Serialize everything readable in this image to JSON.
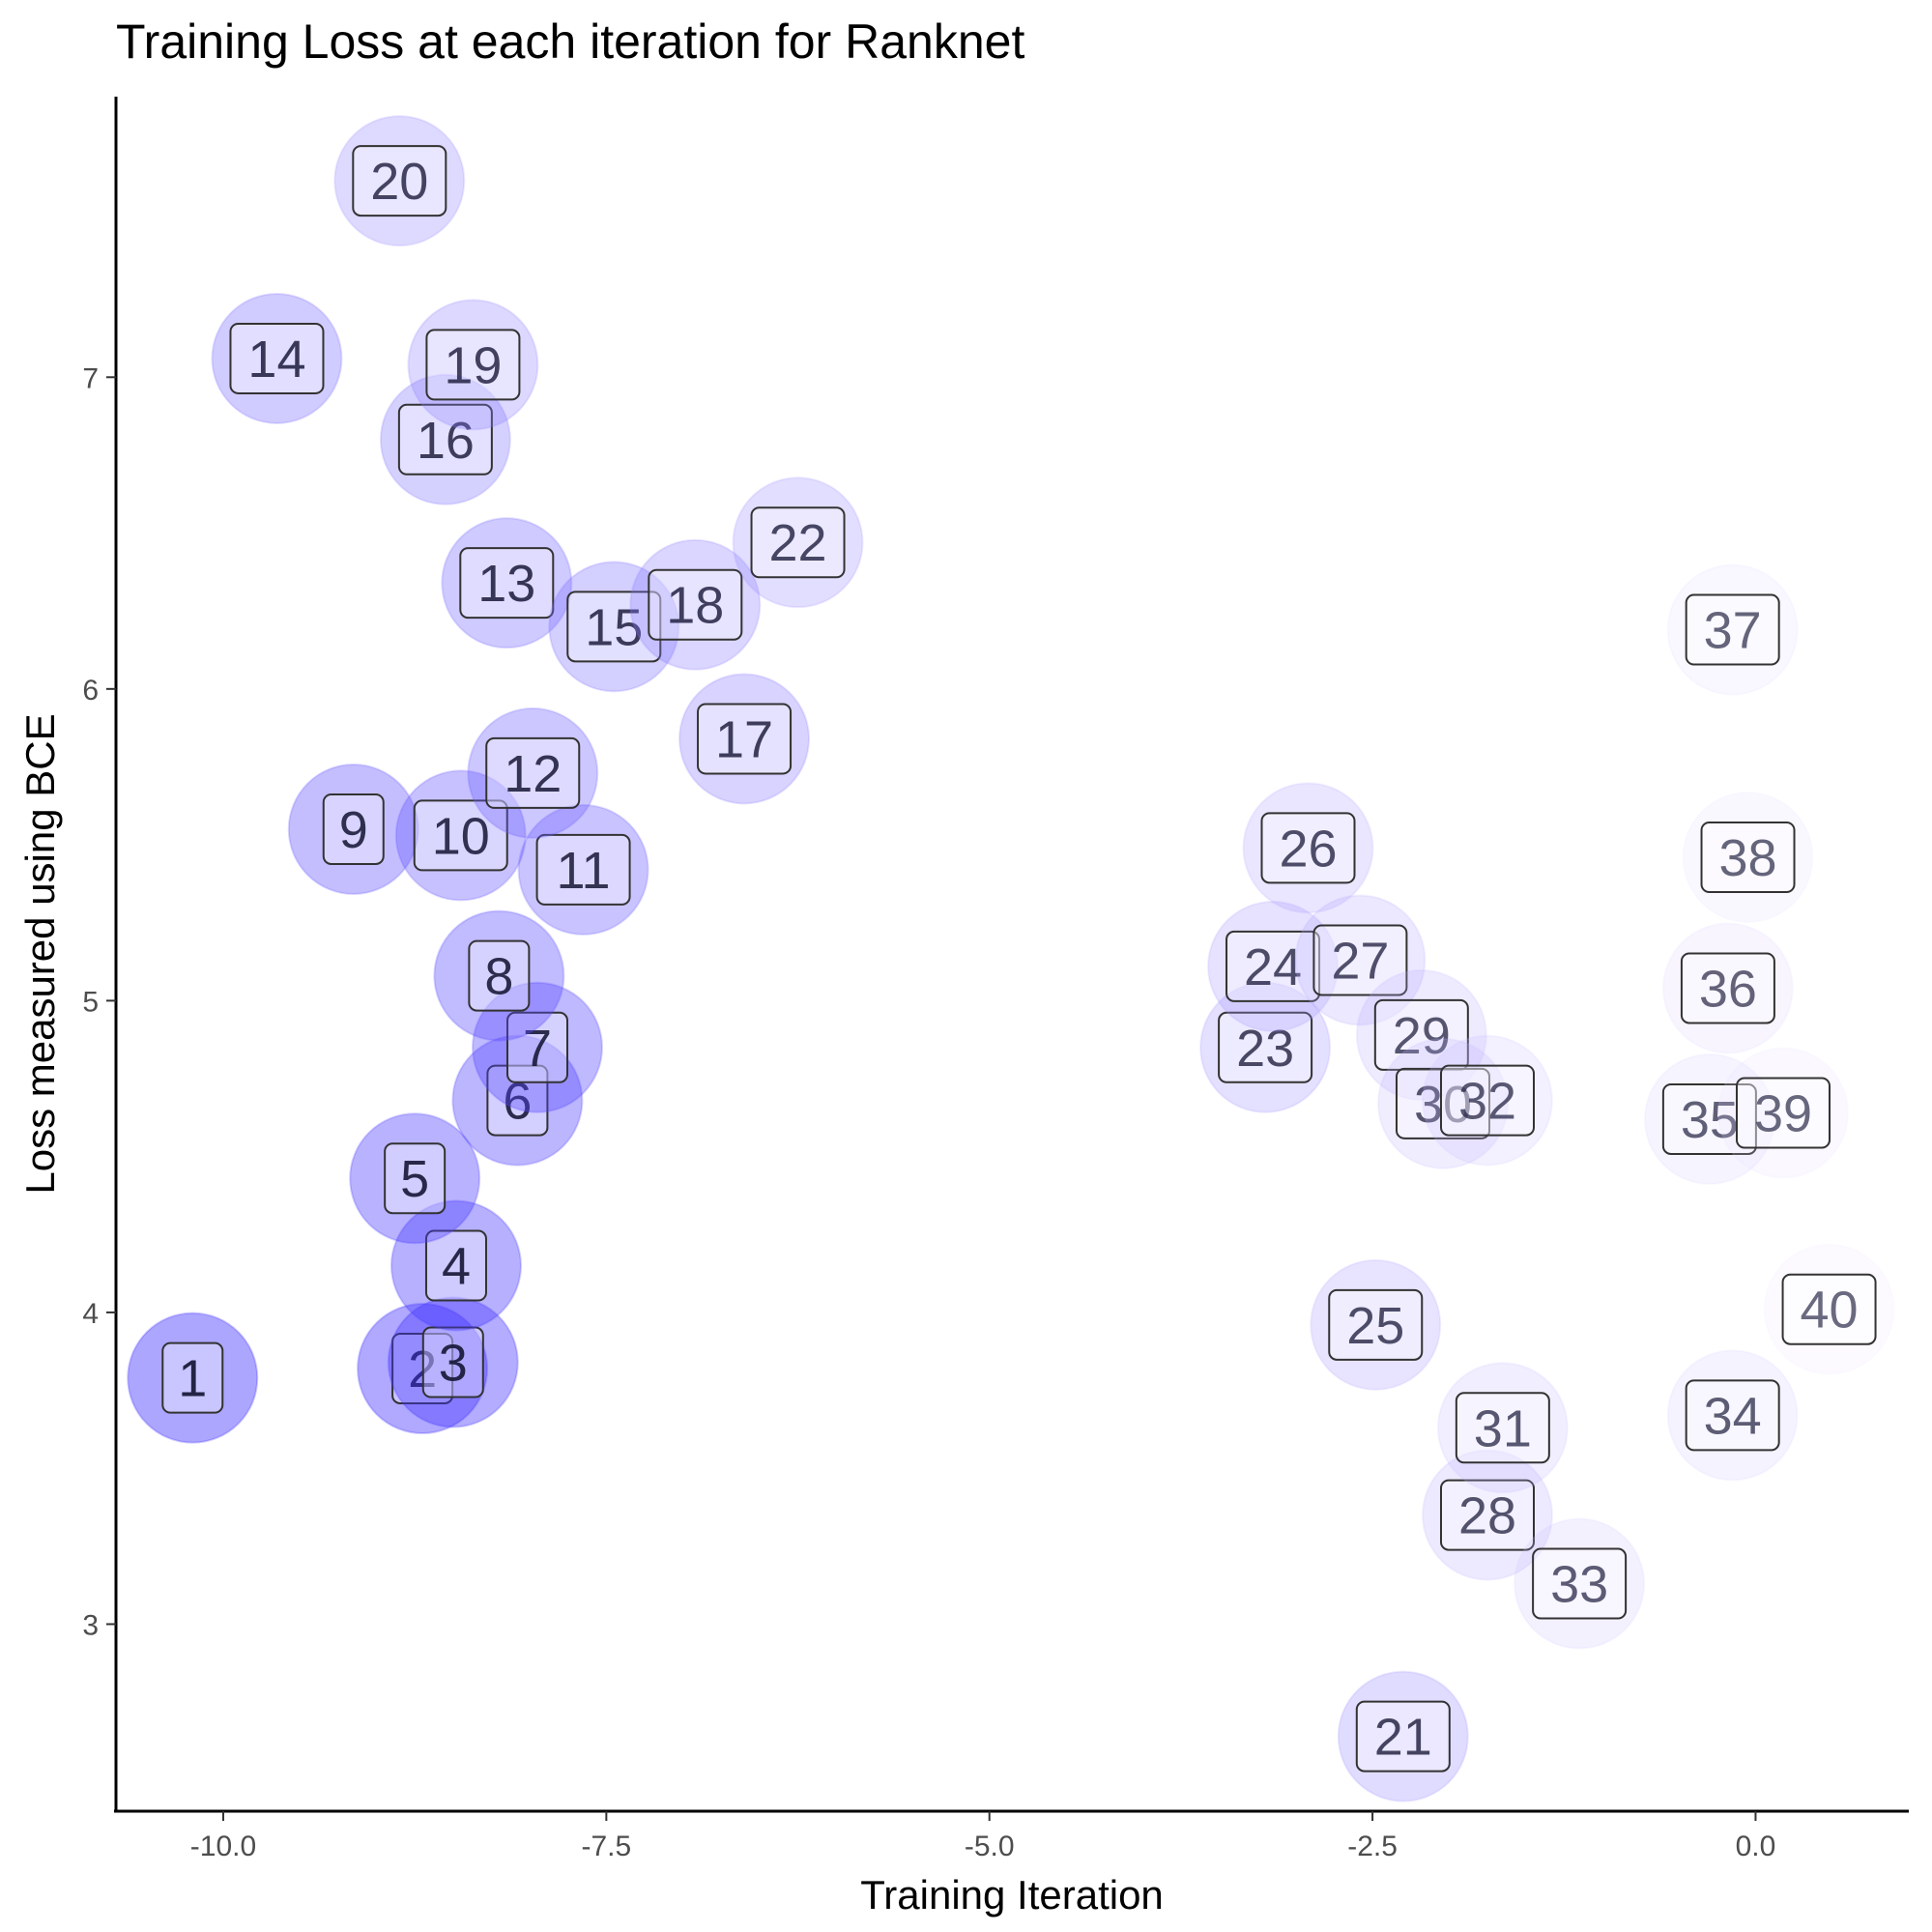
{
  "chart_data": {
    "type": "scatter",
    "title": "Training Loss at each iteration for Ranknet",
    "xlabel": "Training Iteration",
    "ylabel": "Loss measured using BCE",
    "xlim": [
      -10.7,
      1.0
    ],
    "ylim": [
      2.4,
      7.9
    ],
    "x_ticks": [
      -10.0,
      -7.5,
      -5.0,
      -2.5,
      0.0
    ],
    "x_tick_labels": [
      "-10.0",
      "-7.5",
      "-5.0",
      "-2.5",
      "0.0"
    ],
    "y_ticks": [
      3,
      4,
      5,
      6,
      7
    ],
    "y_tick_labels": [
      "3",
      "4",
      "5",
      "6",
      "7"
    ],
    "grid": false,
    "legend": "none",
    "colors": {
      "point_start": "#3b2bff",
      "point_end": "#ebe0ff",
      "label_stroke": "#333333"
    },
    "points": [
      {
        "label": "1",
        "x": -10.2,
        "y": 3.79
      },
      {
        "label": "2",
        "x": -8.7,
        "y": 3.82
      },
      {
        "label": "3",
        "x": -8.5,
        "y": 3.84
      },
      {
        "label": "4",
        "x": -8.48,
        "y": 4.15
      },
      {
        "label": "5",
        "x": -8.75,
        "y": 4.43
      },
      {
        "label": "6",
        "x": -8.08,
        "y": 4.68
      },
      {
        "label": "7",
        "x": -7.95,
        "y": 4.85
      },
      {
        "label": "8",
        "x": -8.2,
        "y": 5.08
      },
      {
        "label": "9",
        "x": -9.15,
        "y": 5.55
      },
      {
        "label": "10",
        "x": -8.45,
        "y": 5.53
      },
      {
        "label": "11",
        "x": -7.65,
        "y": 5.42
      },
      {
        "label": "12",
        "x": -7.98,
        "y": 5.73
      },
      {
        "label": "13",
        "x": -8.15,
        "y": 6.34
      },
      {
        "label": "14",
        "x": -9.65,
        "y": 7.06
      },
      {
        "label": "15",
        "x": -7.45,
        "y": 6.2
      },
      {
        "label": "16",
        "x": -8.55,
        "y": 6.8
      },
      {
        "label": "17",
        "x": -6.6,
        "y": 5.84
      },
      {
        "label": "18",
        "x": -6.92,
        "y": 6.27
      },
      {
        "label": "19",
        "x": -8.37,
        "y": 7.04
      },
      {
        "label": "20",
        "x": -8.85,
        "y": 7.63
      },
      {
        "label": "21",
        "x": -2.3,
        "y": 2.64
      },
      {
        "label": "22",
        "x": -6.25,
        "y": 6.47
      },
      {
        "label": "23",
        "x": -3.2,
        "y": 4.85
      },
      {
        "label": "24",
        "x": -3.15,
        "y": 5.11
      },
      {
        "label": "25",
        "x": -2.48,
        "y": 3.96
      },
      {
        "label": "26",
        "x": -2.92,
        "y": 5.49
      },
      {
        "label": "27",
        "x": -2.58,
        "y": 5.13
      },
      {
        "label": "28",
        "x": -1.75,
        "y": 3.35
      },
      {
        "label": "29",
        "x": -2.18,
        "y": 4.89
      },
      {
        "label": "30",
        "x": -2.04,
        "y": 4.67
      },
      {
        "label": "31",
        "x": -1.65,
        "y": 3.63
      },
      {
        "label": "32",
        "x": -1.75,
        "y": 4.68
      },
      {
        "label": "33",
        "x": -1.15,
        "y": 3.13
      },
      {
        "label": "34",
        "x": -0.15,
        "y": 3.67
      },
      {
        "label": "35",
        "x": -0.3,
        "y": 4.62
      },
      {
        "label": "36",
        "x": -0.18,
        "y": 5.04
      },
      {
        "label": "37",
        "x": -0.15,
        "y": 6.19
      },
      {
        "label": "38",
        "x": -0.05,
        "y": 5.46
      },
      {
        "label": "39",
        "x": 0.18,
        "y": 4.64
      },
      {
        "label": "40",
        "x": 0.48,
        "y": 4.01
      }
    ]
  }
}
